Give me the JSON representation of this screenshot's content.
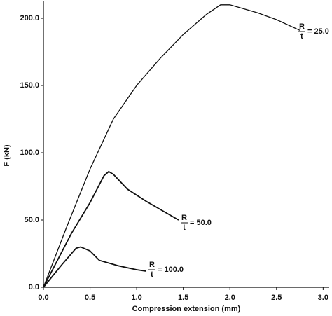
{
  "chart_data": {
    "type": "line",
    "x_label": "Compression extension (mm)",
    "y_label": "F (kN)",
    "xlim": [
      0,
      3.05
    ],
    "ylim": [
      0,
      212
    ],
    "xticks": [
      {
        "value": 0,
        "label": "0.0"
      },
      {
        "value": 0.5,
        "label": "0.5"
      },
      {
        "value": 1,
        "label": "1.0"
      },
      {
        "value": 1.5,
        "label": "1.5"
      },
      {
        "value": 2,
        "label": "2.0"
      },
      {
        "value": 2.5,
        "label": "2.5"
      },
      {
        "value": 3,
        "label": "3.0"
      }
    ],
    "yticks": [
      {
        "value": 0,
        "label": "0.0"
      },
      {
        "value": 50,
        "label": "50.0"
      },
      {
        "value": 100,
        "label": "100.0"
      },
      {
        "value": 150,
        "label": "150.0"
      },
      {
        "value": 200,
        "label": "200.0"
      }
    ],
    "series": [
      {
        "label_numerator": "R",
        "label_denominator": "t",
        "label_value": "= 25.0",
        "color": "#111111",
        "x": [
          0,
          0.25,
          0.5,
          0.75,
          1.0,
          1.25,
          1.5,
          1.75,
          1.9,
          2.0,
          2.3,
          2.5,
          2.75
        ],
        "values": [
          0,
          45,
          88,
          125,
          150,
          170,
          188,
          203,
          210,
          210,
          204,
          199,
          191
        ]
      },
      {
        "label_numerator": "R",
        "label_denominator": "t",
        "label_value": "= 50.0",
        "color": "#111111",
        "x": [
          0,
          0.3,
          0.5,
          0.65,
          0.7,
          0.75,
          0.9,
          1.1,
          1.3,
          1.45
        ],
        "values": [
          0,
          40,
          63,
          83,
          86,
          84,
          73,
          64,
          56,
          50
        ]
      },
      {
        "label_numerator": "R",
        "label_denominator": "t",
        "label_value": "= 100.0",
        "color": "#111111",
        "x": [
          0,
          0.2,
          0.35,
          0.4,
          0.5,
          0.6,
          0.8,
          1.0,
          1.1
        ],
        "values": [
          0,
          17,
          29,
          30,
          27,
          20,
          16,
          13,
          12
        ]
      }
    ]
  }
}
